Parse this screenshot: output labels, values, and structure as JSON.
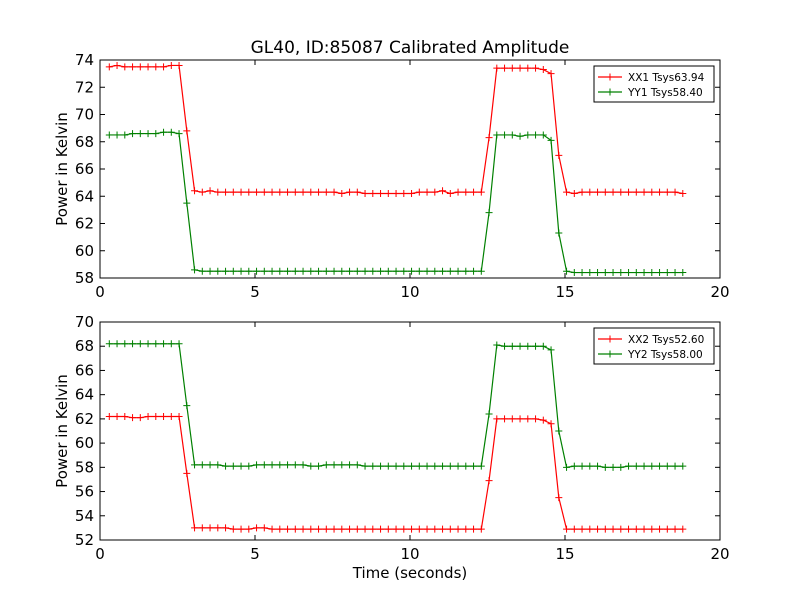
{
  "title": "GL40, ID:85087 Calibrated Amplitude",
  "chart_data": [
    {
      "type": "line",
      "title": "GL40, ID:85087 Calibrated Amplitude",
      "xlabel": "",
      "ylabel": "Power in Kelvin",
      "xlim": [
        0,
        20
      ],
      "ylim": [
        58,
        74
      ],
      "xticks": [
        "0",
        "5",
        "10",
        "15",
        "20"
      ],
      "yticks": [
        "58",
        "60",
        "62",
        "64",
        "66",
        "68",
        "70",
        "72",
        "74"
      ],
      "legend_position": "top-right",
      "grid": false,
      "series": [
        {
          "name": "XX1 Tsys63.94",
          "color": "#ff0000",
          "x": [
            0.3,
            0.55,
            0.8,
            1.05,
            1.3,
            1.55,
            1.8,
            2.05,
            2.3,
            2.55,
            2.8,
            3.05,
            3.3,
            3.55,
            3.8,
            4.05,
            4.3,
            4.55,
            4.8,
            5.05,
            5.3,
            5.55,
            5.8,
            6.05,
            6.3,
            6.55,
            6.8,
            7.05,
            7.3,
            7.55,
            7.8,
            8.05,
            8.3,
            8.55,
            8.8,
            9.05,
            9.3,
            9.55,
            9.8,
            10.05,
            10.3,
            10.55,
            10.8,
            11.05,
            11.3,
            11.55,
            11.8,
            12.05,
            12.3,
            12.55,
            12.8,
            13.05,
            13.3,
            13.55,
            13.8,
            14.05,
            14.3,
            14.55,
            14.8,
            15.05,
            15.3,
            15.55,
            15.8,
            16.05,
            16.3,
            16.55,
            16.8,
            17.05,
            17.3,
            17.55,
            17.8,
            18.05,
            18.3,
            18.55,
            18.8
          ],
          "y": [
            73.5,
            73.6,
            73.5,
            73.5,
            73.5,
            73.5,
            73.5,
            73.5,
            73.6,
            73.6,
            68.8,
            64.4,
            64.3,
            64.4,
            64.3,
            64.3,
            64.3,
            64.3,
            64.3,
            64.3,
            64.3,
            64.3,
            64.3,
            64.3,
            64.3,
            64.3,
            64.3,
            64.3,
            64.3,
            64.3,
            64.2,
            64.3,
            64.3,
            64.2,
            64.2,
            64.2,
            64.2,
            64.2,
            64.2,
            64.2,
            64.3,
            64.3,
            64.3,
            64.4,
            64.2,
            64.3,
            64.3,
            64.3,
            64.3,
            68.3,
            73.4,
            73.4,
            73.4,
            73.4,
            73.4,
            73.4,
            73.3,
            73.0,
            67.0,
            64.3,
            64.2,
            64.3,
            64.3,
            64.3,
            64.3,
            64.3,
            64.3,
            64.3,
            64.3,
            64.3,
            64.3,
            64.3,
            64.3,
            64.3,
            64.2
          ]
        },
        {
          "name": "YY1 Tsys58.40",
          "color": "#008000",
          "x": [
            0.3,
            0.55,
            0.8,
            1.05,
            1.3,
            1.55,
            1.8,
            2.05,
            2.3,
            2.55,
            2.8,
            3.05,
            3.3,
            3.55,
            3.8,
            4.05,
            4.3,
            4.55,
            4.8,
            5.05,
            5.3,
            5.55,
            5.8,
            6.05,
            6.3,
            6.55,
            6.8,
            7.05,
            7.3,
            7.55,
            7.8,
            8.05,
            8.3,
            8.55,
            8.8,
            9.05,
            9.3,
            9.55,
            9.8,
            10.05,
            10.3,
            10.55,
            10.8,
            11.05,
            11.3,
            11.55,
            11.8,
            12.05,
            12.3,
            12.55,
            12.8,
            13.05,
            13.3,
            13.55,
            13.8,
            14.05,
            14.3,
            14.55,
            14.8,
            15.05,
            15.3,
            15.55,
            15.8,
            16.05,
            16.3,
            16.55,
            16.8,
            17.05,
            17.3,
            17.55,
            17.8,
            18.05,
            18.3,
            18.55,
            18.8
          ],
          "y": [
            68.5,
            68.5,
            68.5,
            68.6,
            68.6,
            68.6,
            68.6,
            68.7,
            68.7,
            68.6,
            63.5,
            58.6,
            58.5,
            58.5,
            58.5,
            58.5,
            58.5,
            58.5,
            58.5,
            58.5,
            58.5,
            58.5,
            58.5,
            58.5,
            58.5,
            58.5,
            58.5,
            58.5,
            58.5,
            58.5,
            58.5,
            58.5,
            58.5,
            58.5,
            58.5,
            58.5,
            58.5,
            58.5,
            58.5,
            58.5,
            58.5,
            58.5,
            58.5,
            58.5,
            58.5,
            58.5,
            58.5,
            58.5,
            58.5,
            62.8,
            68.5,
            68.5,
            68.5,
            68.4,
            68.5,
            68.5,
            68.5,
            68.1,
            61.3,
            58.5,
            58.4,
            58.4,
            58.4,
            58.4,
            58.4,
            58.4,
            58.4,
            58.4,
            58.4,
            58.4,
            58.4,
            58.4,
            58.4,
            58.4,
            58.4
          ]
        }
      ]
    },
    {
      "type": "line",
      "title": "",
      "xlabel": "Time (seconds)",
      "ylabel": "Power in Kelvin",
      "xlim": [
        0,
        20
      ],
      "ylim": [
        52,
        70
      ],
      "xticks": [
        "0",
        "5",
        "10",
        "15",
        "20"
      ],
      "yticks": [
        "52",
        "54",
        "56",
        "58",
        "60",
        "62",
        "64",
        "66",
        "68",
        "70"
      ],
      "legend_position": "top-right",
      "grid": false,
      "series": [
        {
          "name": "XX2 Tsys52.60",
          "color": "#ff0000",
          "x": [
            0.3,
            0.55,
            0.8,
            1.05,
            1.3,
            1.55,
            1.8,
            2.05,
            2.3,
            2.55,
            2.8,
            3.05,
            3.3,
            3.55,
            3.8,
            4.05,
            4.3,
            4.55,
            4.8,
            5.05,
            5.3,
            5.55,
            5.8,
            6.05,
            6.3,
            6.55,
            6.8,
            7.05,
            7.3,
            7.55,
            7.8,
            8.05,
            8.3,
            8.55,
            8.8,
            9.05,
            9.3,
            9.55,
            9.8,
            10.05,
            10.3,
            10.55,
            10.8,
            11.05,
            11.3,
            11.55,
            11.8,
            12.05,
            12.3,
            12.55,
            12.8,
            13.05,
            13.3,
            13.55,
            13.8,
            14.05,
            14.3,
            14.55,
            14.8,
            15.05,
            15.3,
            15.55,
            15.8,
            16.05,
            16.3,
            16.55,
            16.8,
            17.05,
            17.3,
            17.55,
            17.8,
            18.05,
            18.3,
            18.55,
            18.8
          ],
          "y": [
            62.2,
            62.2,
            62.2,
            62.1,
            62.1,
            62.2,
            62.2,
            62.2,
            62.2,
            62.2,
            57.5,
            53.0,
            53.0,
            53.0,
            53.0,
            53.0,
            52.9,
            52.9,
            52.9,
            53.0,
            53.0,
            52.9,
            52.9,
            52.9,
            52.9,
            52.9,
            52.9,
            52.9,
            52.9,
            52.9,
            52.9,
            52.9,
            52.9,
            52.9,
            52.9,
            52.9,
            52.9,
            52.9,
            52.9,
            52.9,
            52.9,
            52.9,
            52.9,
            52.9,
            52.9,
            52.9,
            52.9,
            52.9,
            52.9,
            56.9,
            62.0,
            62.0,
            62.0,
            62.0,
            62.0,
            62.0,
            61.9,
            61.6,
            55.5,
            52.9,
            52.9,
            52.9,
            52.9,
            52.9,
            52.9,
            52.9,
            52.9,
            52.9,
            52.9,
            52.9,
            52.9,
            52.9,
            52.9,
            52.9,
            52.9
          ]
        },
        {
          "name": "YY2 Tsys58.00",
          "color": "#008000",
          "x": [
            0.3,
            0.55,
            0.8,
            1.05,
            1.3,
            1.55,
            1.8,
            2.05,
            2.3,
            2.55,
            2.8,
            3.05,
            3.3,
            3.55,
            3.8,
            4.05,
            4.3,
            4.55,
            4.8,
            5.05,
            5.3,
            5.55,
            5.8,
            6.05,
            6.3,
            6.55,
            6.8,
            7.05,
            7.3,
            7.55,
            7.8,
            8.05,
            8.3,
            8.55,
            8.8,
            9.05,
            9.3,
            9.55,
            9.8,
            10.05,
            10.3,
            10.55,
            10.8,
            11.05,
            11.3,
            11.55,
            11.8,
            12.05,
            12.3,
            12.55,
            12.8,
            13.05,
            13.3,
            13.55,
            13.8,
            14.05,
            14.3,
            14.55,
            14.8,
            15.05,
            15.3,
            15.55,
            15.8,
            16.05,
            16.3,
            16.55,
            16.8,
            17.05,
            17.3,
            17.55,
            17.8,
            18.05,
            18.3,
            18.55,
            18.8
          ],
          "y": [
            68.2,
            68.2,
            68.2,
            68.2,
            68.2,
            68.2,
            68.2,
            68.2,
            68.2,
            68.2,
            63.1,
            58.2,
            58.2,
            58.2,
            58.2,
            58.1,
            58.1,
            58.1,
            58.1,
            58.2,
            58.2,
            58.2,
            58.2,
            58.2,
            58.2,
            58.2,
            58.1,
            58.1,
            58.2,
            58.2,
            58.2,
            58.2,
            58.2,
            58.1,
            58.1,
            58.1,
            58.1,
            58.1,
            58.1,
            58.1,
            58.1,
            58.1,
            58.1,
            58.1,
            58.1,
            58.1,
            58.1,
            58.1,
            58.1,
            62.4,
            68.1,
            68.0,
            68.0,
            68.0,
            68.0,
            68.0,
            68.0,
            67.7,
            61.0,
            58.0,
            58.1,
            58.1,
            58.1,
            58.1,
            58.0,
            58.0,
            58.0,
            58.1,
            58.1,
            58.1,
            58.1,
            58.1,
            58.1,
            58.1,
            58.1
          ]
        }
      ]
    }
  ]
}
